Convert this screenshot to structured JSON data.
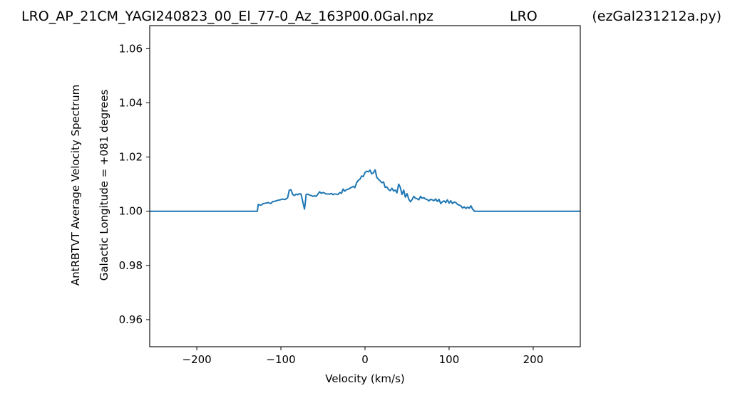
{
  "header": {
    "filename": "LRO_AP_21CM_YAGI240823_00_El_77-0_Az_163P00.0Gal.npz",
    "site": "LRO",
    "script": "(ezGal231212a.py)"
  },
  "chart_data": {
    "type": "line",
    "xlabel": "Velocity (km/s)",
    "ylabel_outer": "AntRBTVT Average Velocity Spectrum",
    "ylabel_inner": "Galactic Longitude = +081 degrees",
    "xlim": [
      -256,
      256
    ],
    "ylim": [
      0.95,
      1.0685
    ],
    "xticks": [
      -200,
      -100,
      0,
      100,
      200
    ],
    "xtick_labels": [
      "−200",
      "−100",
      "0",
      "100",
      "200"
    ],
    "yticks": [
      0.96,
      0.98,
      1.0,
      1.02,
      1.04,
      1.06
    ],
    "ytick_labels": [
      "0.96",
      "0.98",
      "1.00",
      "1.02",
      "1.04",
      "1.06"
    ],
    "grid": false,
    "series": [
      {
        "color": "#1f77b4",
        "x": [
          -256,
          -128,
          -127,
          -124,
          -121,
          -118,
          -115,
          -112,
          -110,
          -107,
          -104,
          -101,
          -98,
          -95,
          -92,
          -90,
          -88,
          -86,
          -84,
          -82,
          -80,
          -78,
          -76,
          -74,
          -72,
          -71,
          -70,
          -68,
          -66,
          -64,
          -62,
          -60,
          -58,
          -56,
          -54,
          -52,
          -50,
          -48,
          -46,
          -44,
          -42,
          -40,
          -38,
          -36,
          -34,
          -32,
          -30,
          -28,
          -26,
          -24,
          -22,
          -20,
          -18,
          -16,
          -14,
          -12,
          -10,
          -8,
          -6,
          -4,
          -2,
          0,
          2,
          4,
          6,
          8,
          10,
          12,
          14,
          16,
          18,
          20,
          22,
          24,
          26,
          28,
          30,
          32,
          34,
          36,
          38,
          40,
          42,
          44,
          46,
          48,
          50,
          52,
          54,
          56,
          58,
          60,
          62,
          64,
          66,
          68,
          70,
          72,
          74,
          76,
          78,
          80,
          82,
          84,
          86,
          88,
          90,
          92,
          94,
          96,
          98,
          100,
          102,
          104,
          106,
          108,
          110,
          112,
          114,
          116,
          118,
          120,
          122,
          124,
          126,
          128,
          129,
          130,
          256
        ],
        "y": [
          1.0,
          1.0,
          1.0025,
          1.0022,
          1.0028,
          1.003,
          1.0032,
          1.0028,
          1.0035,
          1.0037,
          1.004,
          1.0042,
          1.0045,
          1.0043,
          1.005,
          1.0078,
          1.0079,
          1.0062,
          1.0058,
          1.0063,
          1.0061,
          1.0065,
          1.0063,
          1.0035,
          1.0008,
          1.003,
          1.0062,
          1.0063,
          1.006,
          1.0058,
          1.0055,
          1.0057,
          1.0055,
          1.0063,
          1.0072,
          1.0066,
          1.0069,
          1.0067,
          1.0063,
          1.0064,
          1.0063,
          1.0066,
          1.0061,
          1.0064,
          1.0063,
          1.0062,
          1.0069,
          1.0066,
          1.0082,
          1.0074,
          1.008,
          1.0081,
          1.0085,
          1.0088,
          1.0092,
          1.0087,
          1.0105,
          1.0114,
          1.0118,
          1.013,
          1.0128,
          1.0143,
          1.0148,
          1.0145,
          1.0152,
          1.0138,
          1.0142,
          1.0153,
          1.0125,
          1.0118,
          1.0112,
          1.0105,
          1.0108,
          1.0088,
          1.009,
          1.008,
          1.0076,
          1.0085,
          1.0075,
          1.0078,
          1.0068,
          1.01,
          1.0088,
          1.0062,
          1.0078,
          1.0052,
          1.0065,
          1.0045,
          1.0035,
          1.0043,
          1.0055,
          1.0048,
          1.0046,
          1.0042,
          1.0055,
          1.0048,
          1.005,
          1.0045,
          1.0043,
          1.0038,
          1.0044,
          1.0042,
          1.0039,
          1.0045,
          1.0036,
          1.0044,
          1.0028,
          1.0035,
          1.0038,
          1.0032,
          1.0042,
          1.003,
          1.0039,
          1.0028,
          1.0034,
          1.0032,
          1.0025,
          1.0023,
          1.002,
          1.0012,
          1.0016,
          1.001,
          1.0015,
          1.0011,
          1.002,
          1.0007,
          1.0005,
          1.0,
          1.0
        ]
      }
    ]
  }
}
